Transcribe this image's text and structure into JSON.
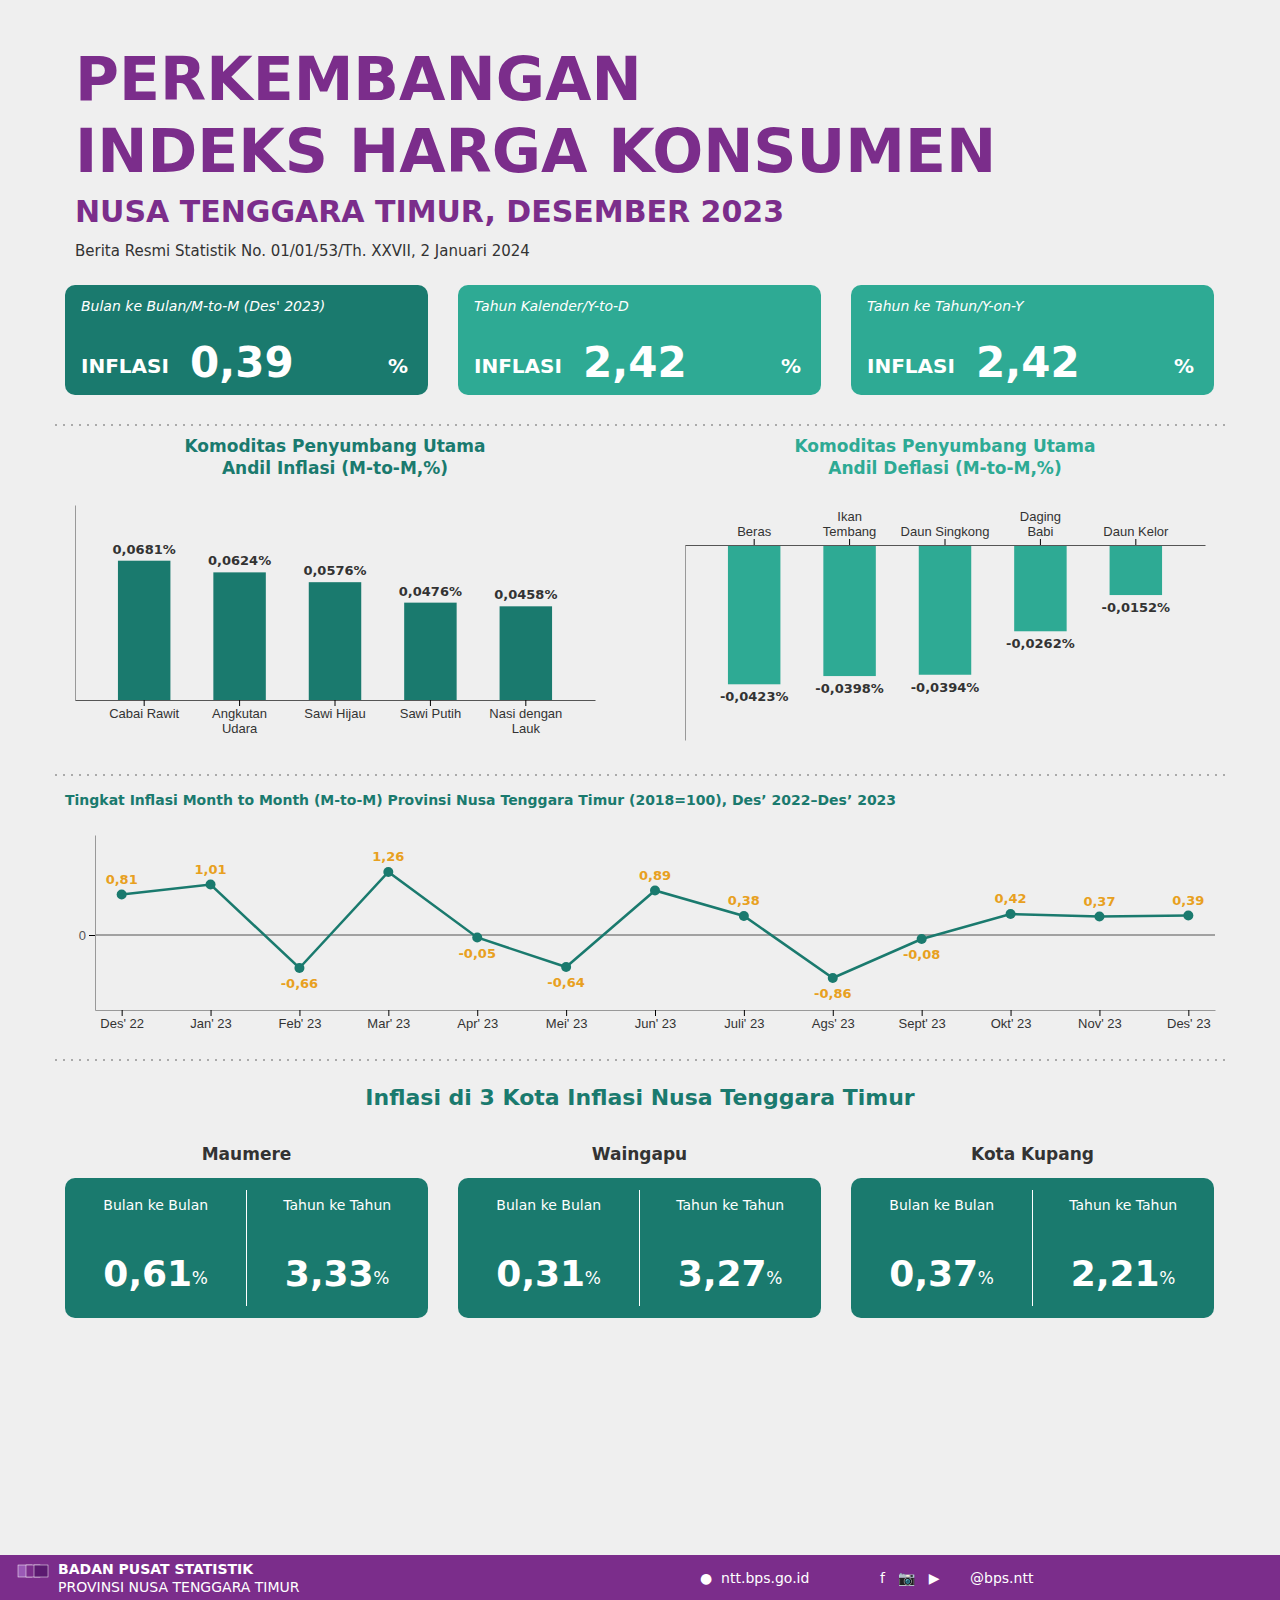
{
  "header": {
    "title": "PERKEMBANGAN\nINDEKS HARGA KONSUMEN",
    "subtitle": "NUSA TENGGARA TIMUR, DESEMBER 2023",
    "annotations": [
      "Berita Resmi Statistik No. 01/01/53/Th. XXVII, 2 Januari 2024"
    ],
    "color": "#7B2D8B"
  },
  "summary": [
    {
      "title": "INFLASI",
      "label": "Bulan ke Bulan/M-to-M (Des' 2023)",
      "value": 0.39,
      "value_label": "0,39",
      "unit": "%",
      "color": "#1A7A6E"
    },
    {
      "title": "INFLASI",
      "label": "Tahun Kalender/Y-to-D",
      "value": 2.42,
      "value_label": "2,42",
      "unit": "%",
      "color": "#2EAA94"
    },
    {
      "title": "INFLASI",
      "label": "Tahun ke Tahun/Y-on-Y",
      "value": 2.42,
      "value_label": "2,42",
      "unit": "%",
      "color": "#2EAA94"
    }
  ],
  "chart_data": [
    {
      "type": "bar",
      "title": "Komoditas Penyumbang Utama\nAndil Inflasi (M-to-M,%)",
      "categories": [
        "Cabai Rawit",
        "Angkutan\nUdara",
        "Sawi Hijau",
        "Sawi Putih",
        "Nasi dengan\nLauk"
      ],
      "values": [
        0.0681,
        0.0624,
        0.0576,
        0.0476,
        0.0458
      ],
      "value_labels": [
        "0,0681%",
        "0,0624%",
        "0,0576%",
        "0,0476%",
        "0,0458%"
      ],
      "color": "#1A7A6E",
      "ylim": [
        0,
        0.09534
      ],
      "yticks": [],
      "data_labels": true,
      "tick_labels": "x"
    },
    {
      "type": "bar",
      "title": "Komoditas Penyumbang Utama\nAndil Deflasi (M-to-M,%)",
      "categories": [
        "Beras",
        "Ikan\nTembang",
        "Daun Singkong",
        "Daging\nBabi",
        "Daun Kelor"
      ],
      "values": [
        -0.0423,
        -0.0398,
        -0.0394,
        -0.0262,
        -0.0152
      ],
      "value_labels": [
        "-0,0423%",
        "-0,0398%",
        "-0,0394%",
        "-0,0262%",
        "-0,0152%"
      ],
      "color": "#2EAA94",
      "ylim": [
        -0.05922,
        0
      ],
      "yticks": [],
      "data_labels": true,
      "tick_labels": "x"
    },
    {
      "type": "line",
      "title": "Tingkat Inflasi Month to Month (M-to-M) Provinsi Nusa Tenggara Timur (2018=100), Des’ 2022–Des’ 2023",
      "categories": [
        "Des' 22",
        "Jan' 23",
        "Feb' 23",
        "Mar' 23",
        "Apr' 23",
        "Mei' 23",
        "Jun' 23",
        "Juli' 23",
        "Ags' 23",
        "Sept' 23",
        "Okt' 23",
        "Nov' 23",
        "Des' 23"
      ],
      "values": [
        0.81,
        1.01,
        -0.66,
        1.26,
        -0.05,
        -0.64,
        0.89,
        0.38,
        -0.86,
        -0.08,
        0.42,
        0.37,
        0.39
      ],
      "value_labels": [
        "0,81",
        "1,01",
        "-0,66",
        "1,26",
        "-0,05",
        "-0,64",
        "0,89",
        "0,38",
        "-0,86",
        "-0,08",
        "0,42",
        "0,37",
        "0,39"
      ],
      "color": "#1A7A6E",
      "marker": "circle",
      "ylim": [
        -1.5,
        2.0
      ],
      "yticks": [
        0
      ],
      "grid": true,
      "data_labels": true
    }
  ],
  "cities": {
    "title": "Inflasi di 3 Kota Inflasi Nusa Tenggara Timur",
    "categories": [
      "Bulan ke Bulan",
      "Tahun ke Tahun"
    ],
    "unit": "%",
    "color": "#1A7A6E",
    "series": [
      {
        "name": "Maumere",
        "values": [
          0.61,
          3.33
        ],
        "value_labels": [
          "0,61",
          "3,33"
        ]
      },
      {
        "name": "Waingapu",
        "values": [
          0.31,
          3.27
        ],
        "value_labels": [
          "0,31",
          "3,27"
        ]
      },
      {
        "name": "Kota Kupang",
        "values": [
          0.37,
          2.21
        ],
        "value_labels": [
          "0,37",
          "2,21"
        ]
      }
    ]
  },
  "footer": {
    "annotations": [
      "BADAN PUSAT STATISTIK",
      "PROVINSI NUSA TENGGARA TIMUR",
      "●  ntt.bps.go.id",
      "f   📷   ▶",
      "@bps.ntt"
    ],
    "color": "#7B2D8B"
  }
}
